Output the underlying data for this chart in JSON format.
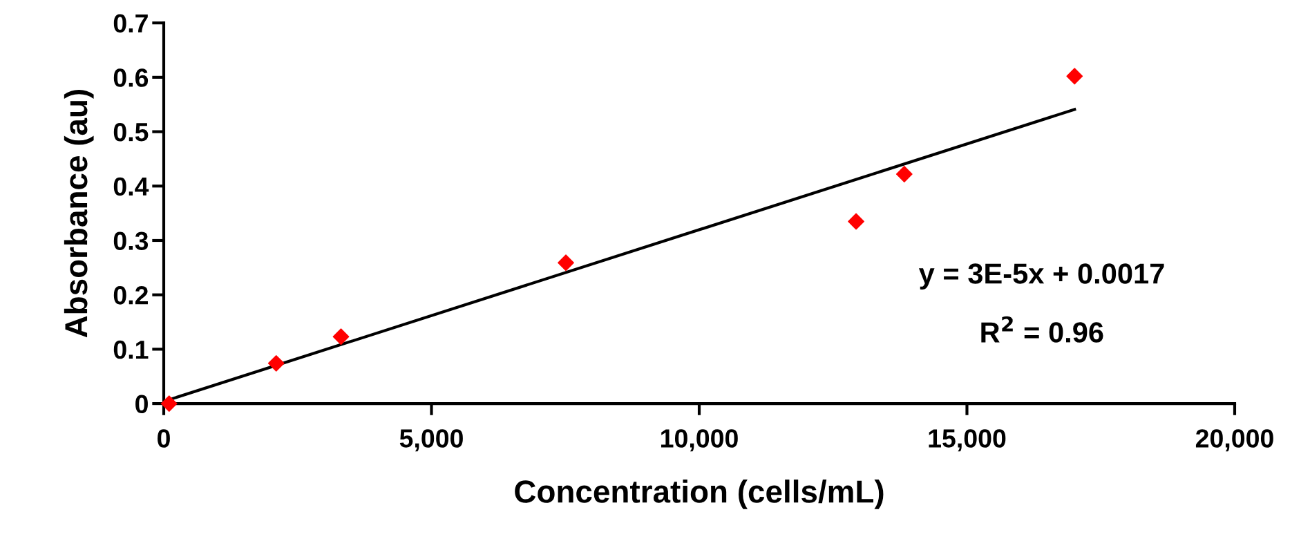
{
  "chart_data": {
    "type": "scatter",
    "xlabel": "Concentration (cells/mL)",
    "ylabel": "Absorbance (au)",
    "xlim": [
      0,
      20000
    ],
    "ylim": [
      0,
      0.7
    ],
    "xticks": [
      0,
      {
        "value": 5000,
        "label": "5,000"
      },
      {
        "value": 10000,
        "label": "10,000"
      },
      {
        "value": 15000,
        "label": "15,000"
      },
      {
        "value": 20000,
        "label": "20,000"
      }
    ],
    "yticks": [
      0,
      0.1,
      0.2,
      0.3,
      0.4,
      0.5,
      0.6,
      0.7
    ],
    "grid": false,
    "legend": false,
    "series": [
      {
        "marker": "diamond",
        "color": "#ff0000",
        "x": [
          100,
          2100,
          3310,
          7510,
          12930,
          13830,
          17010
        ],
        "values": [
          0,
          0.074,
          0.123,
          0.259,
          0.335,
          0.422,
          0.602
        ]
      },
      {
        "type": "line",
        "marker": "none",
        "color": "#000000",
        "x": [
          0,
          17010
        ],
        "values": [
          0.004,
          0.541
        ]
      }
    ],
    "annotations": [
      "y = 3E-5x + 0.0017",
      "R$^{2}$ = 0.96"
    ]
  }
}
